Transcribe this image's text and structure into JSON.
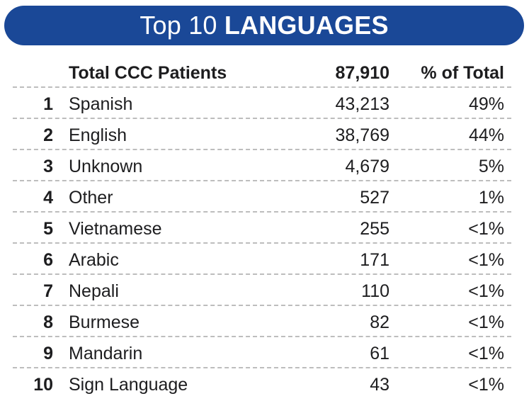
{
  "banner": {
    "title_light": "Top 10 ",
    "title_bold": "LANGUAGES"
  },
  "header": {
    "label": "Total CCC Patients",
    "total": "87,910",
    "pct_label": "% of Total"
  },
  "rows": [
    {
      "rank": "1",
      "language": "Spanish",
      "count": "43,213",
      "pct": "49%"
    },
    {
      "rank": "2",
      "language": "English",
      "count": "38,769",
      "pct": "44%"
    },
    {
      "rank": "3",
      "language": "Unknown",
      "count": "4,679",
      "pct": "5%"
    },
    {
      "rank": "4",
      "language": "Other",
      "count": "527",
      "pct": "1%"
    },
    {
      "rank": "5",
      "language": "Vietnamese",
      "count": "255",
      "pct": "<1%"
    },
    {
      "rank": "6",
      "language": "Arabic",
      "count": "171",
      "pct": "<1%"
    },
    {
      "rank": "7",
      "language": "Nepali",
      "count": "110",
      "pct": "<1%"
    },
    {
      "rank": "8",
      "language": "Burmese",
      "count": "82",
      "pct": "<1%"
    },
    {
      "rank": "9",
      "language": "Mandarin",
      "count": "61",
      "pct": "<1%"
    },
    {
      "rank": "10",
      "language": "Sign Language",
      "count": "43",
      "pct": "<1%"
    }
  ],
  "colors": {
    "banner": "#1a4897",
    "text": "#1d1d1f",
    "divider": "#bdbdbd"
  }
}
